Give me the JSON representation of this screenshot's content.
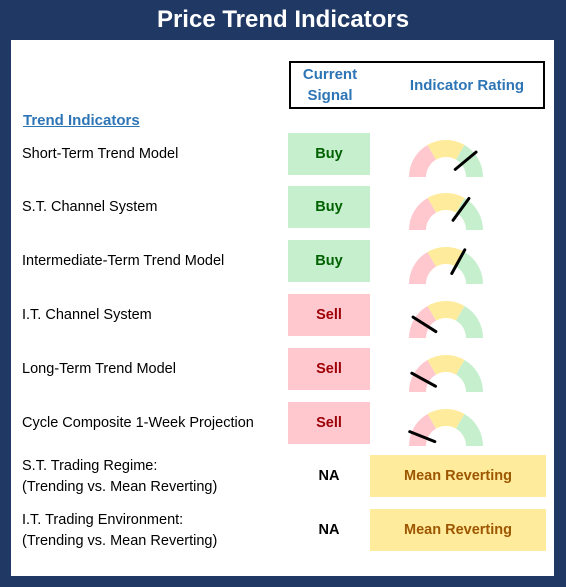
{
  "title": "Price Trend Indicators",
  "header": {
    "current_signal_line1": "Current",
    "current_signal_line2": "Signal",
    "indicator_rating": "Indicator Rating"
  },
  "section_title": "Trend Indicators",
  "colors": {
    "frame": "#1f3864",
    "header_text": "#2e75b6",
    "buy_bg": "#c6efce",
    "buy_text": "#006100",
    "sell_bg": "#ffc7ce",
    "sell_text": "#9c0006",
    "neutral_bg": "#ffeb9c",
    "neutral_text": "#9c5700"
  },
  "indicators": [
    {
      "label": "Short-Term Trend Model",
      "signal": "Buy",
      "signal_type": "buy",
      "gauge_level": 0.78
    },
    {
      "label": "S.T. Channel System",
      "signal": "Buy",
      "signal_type": "buy",
      "gauge_level": 0.7
    },
    {
      "label": "Intermediate-Term Trend Model",
      "signal": "Buy",
      "signal_type": "buy",
      "gauge_level": 0.66
    },
    {
      "label": "I.T. Channel System",
      "signal": "Sell",
      "signal_type": "sell",
      "gauge_level": 0.18
    },
    {
      "label": "Long-Term Trend Model",
      "signal": "Sell",
      "signal_type": "sell",
      "gauge_level": 0.16
    },
    {
      "label": "Cycle Composite 1-Week Projection",
      "signal": "Sell",
      "signal_type": "sell",
      "gauge_level": 0.12
    }
  ],
  "regimes": [
    {
      "line1": "S.T. Trading Regime:",
      "line2": "(Trending vs. Mean Reverting)",
      "signal": "NA",
      "rating": "Mean Reverting"
    },
    {
      "line1": "I.T. Trading Environment:",
      "line2": "(Trending vs. Mean Reverting)",
      "signal": "NA",
      "rating": "Mean Reverting"
    }
  ]
}
